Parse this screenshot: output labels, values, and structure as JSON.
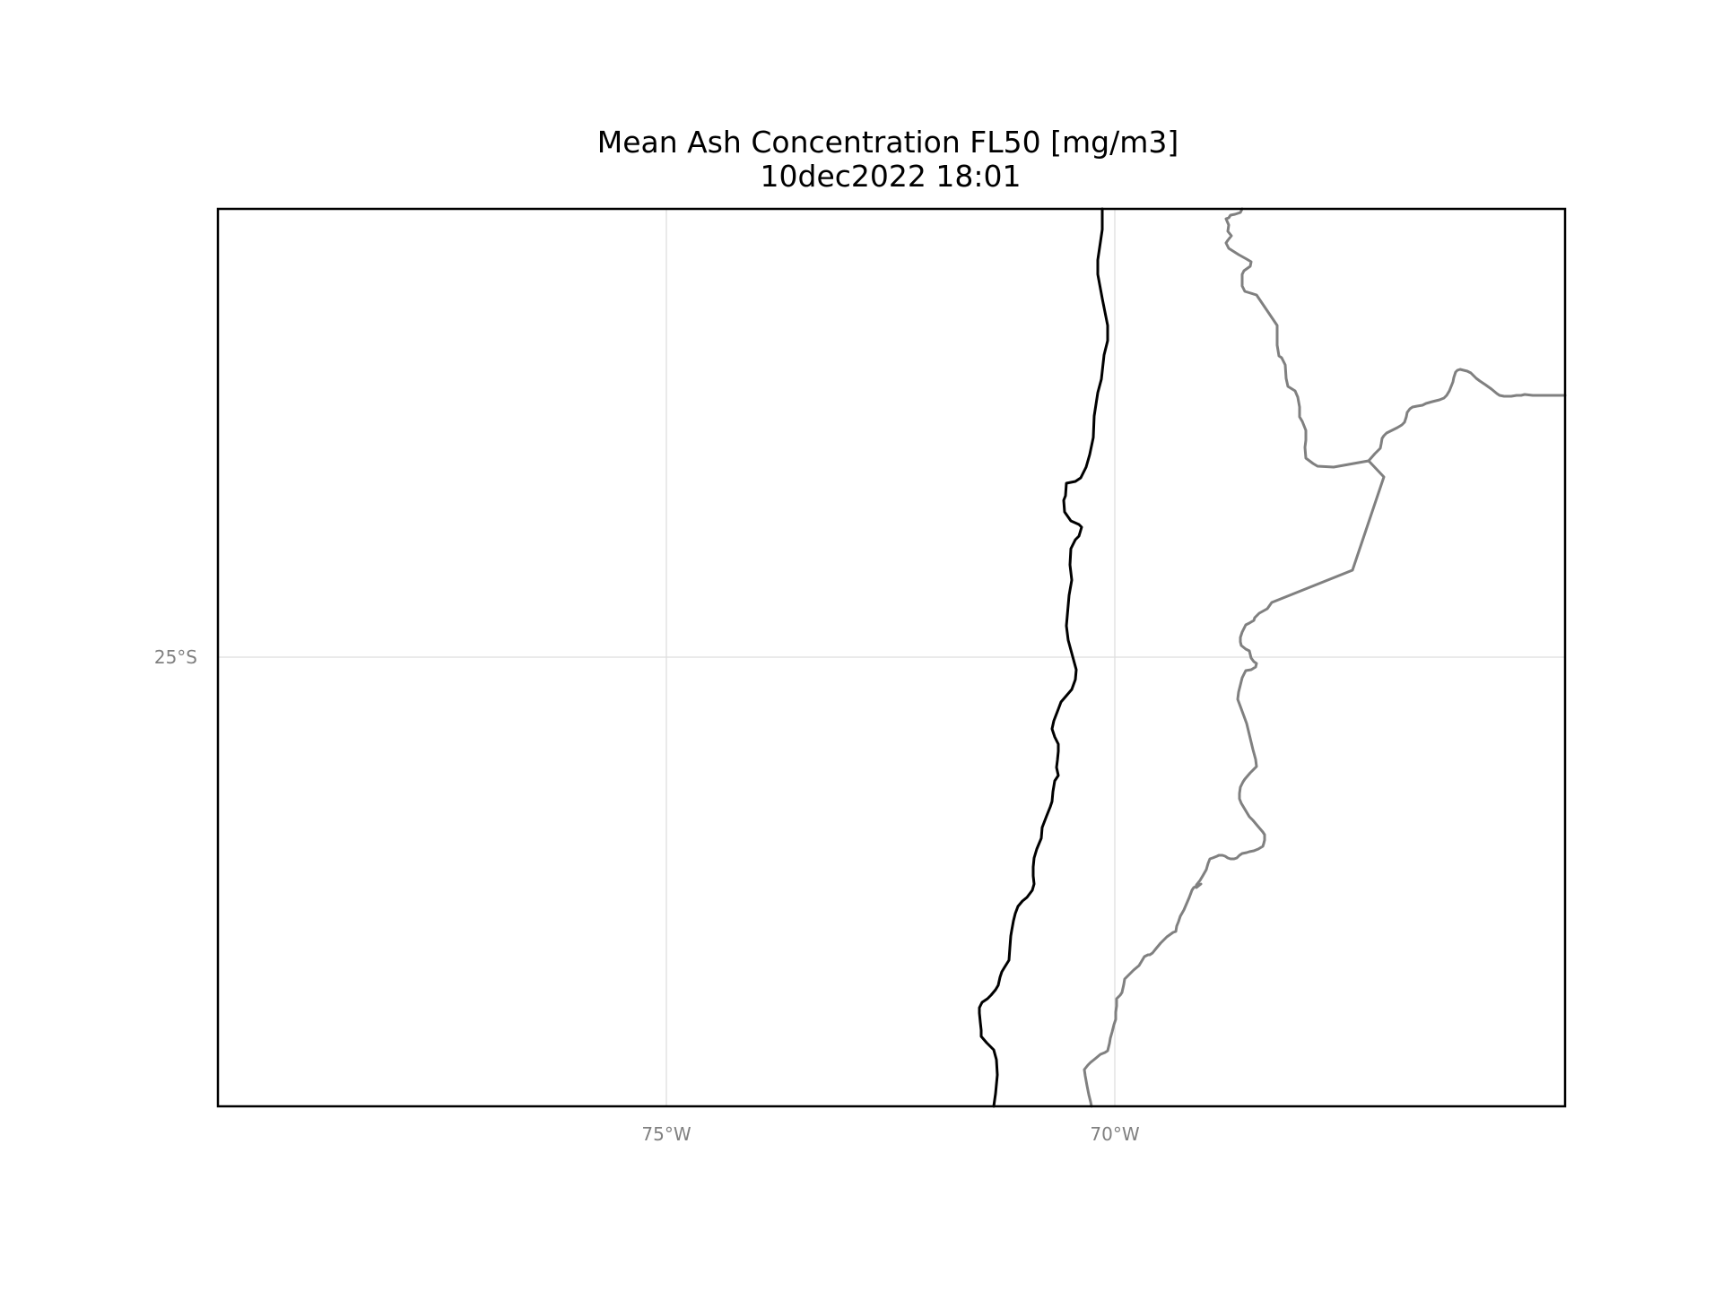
{
  "figure": {
    "title_line1": "Mean Ash Concentration FL50 [mg/m3]",
    "title_line2": "10dec2022 18:01"
  },
  "map": {
    "gridlines": {
      "longitudes": [
        {
          "value": -75,
          "label": "75°W"
        },
        {
          "value": -70,
          "label": "70°W"
        }
      ],
      "latitudes": [
        {
          "value": -25,
          "label": "25°S"
        }
      ]
    },
    "features": [
      {
        "name": "coastline",
        "color": "#000000"
      },
      {
        "name": "national-borders",
        "color": "#808080"
      }
    ]
  }
}
